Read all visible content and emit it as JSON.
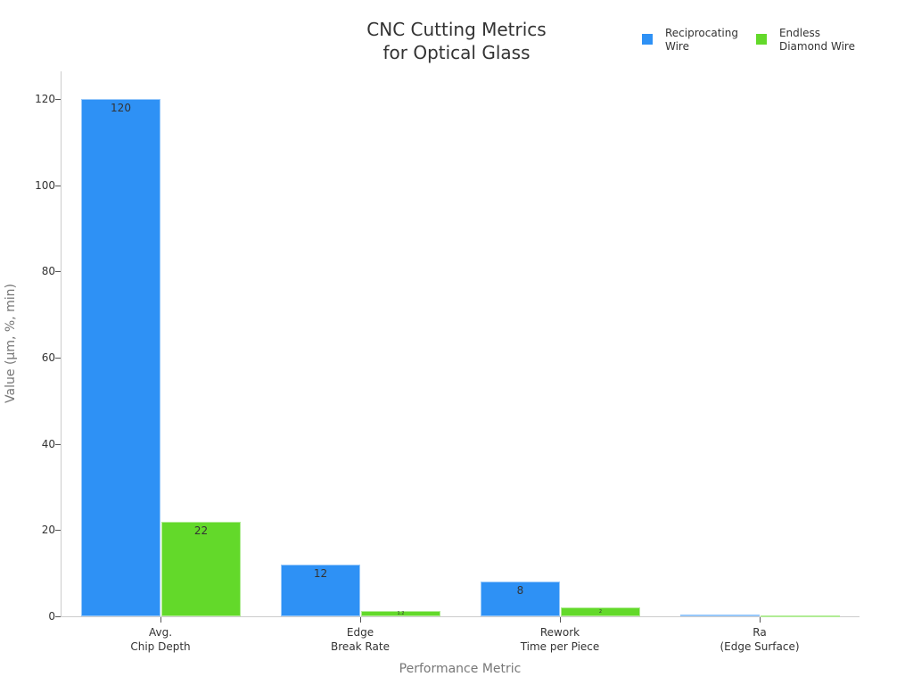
{
  "chart_data": {
    "type": "bar",
    "title": "CNC Cutting Metrics\nfor Optical Glass",
    "title_lines": [
      "CNC Cutting Metrics",
      "for Optical Glass"
    ],
    "xlabel": "Performance Metric",
    "ylabel": "Value (µm, %, min)",
    "categories": [
      "Avg.\nChip Depth",
      "Edge\nBreak Rate",
      "Rework\nTime per Piece",
      "Ra\n(Edge Surface)"
    ],
    "series": [
      {
        "name": "Reciprocating Wire",
        "legend_label": "Reciprocating\nWire",
        "color": "#2e91f5",
        "values": [
          120,
          12,
          8,
          0.4
        ]
      },
      {
        "name": "Endless Diamond Wire",
        "legend_label": "Endless\nDiamond Wire",
        "color": "#63d92a",
        "values": [
          22,
          1.2,
          2,
          0.1
        ]
      }
    ],
    "ylim": [
      0,
      126
    ],
    "yticks": [
      0,
      20,
      40,
      60,
      80,
      100,
      120
    ],
    "grid": false,
    "legend_position": "top-right"
  }
}
